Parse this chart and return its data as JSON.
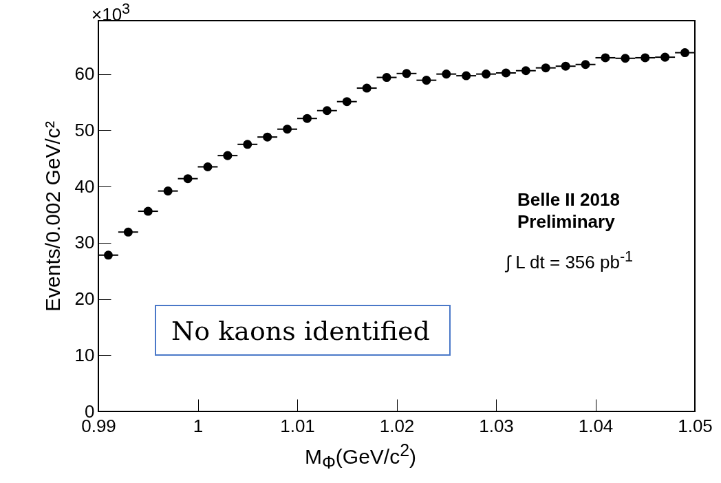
{
  "chart_data": {
    "type": "scatter",
    "xlabel": "M$_{Φ}$(GeV/c$^{2}$)",
    "ylabel": "Events/0.002 GeV/c²",
    "x": [
      0.991,
      0.993,
      0.995,
      0.997,
      0.999,
      1.001,
      1.003,
      1.005,
      1.007,
      1.009,
      1.011,
      1.013,
      1.015,
      1.017,
      1.019,
      1.021,
      1.023,
      1.025,
      1.027,
      1.029,
      1.031,
      1.033,
      1.035,
      1.037,
      1.039,
      1.041,
      1.043,
      1.045,
      1.047,
      1.049
    ],
    "series": [
      {
        "color": "#000000",
        "values": [
          27.8,
          31.9,
          35.6,
          39.2,
          41.4,
          43.5,
          45.5,
          47.5,
          48.8,
          50.2,
          52.1,
          53.5,
          55.1,
          57.5,
          59.4,
          60.1,
          58.9,
          60.0,
          59.7,
          60.0,
          60.2,
          60.6,
          61.1,
          61.4,
          61.7,
          62.9,
          62.8,
          62.9,
          63.0,
          63.8
        ],
        "xerrors": [
          0.001,
          0.001,
          0.001,
          0.001,
          0.001,
          0.001,
          0.001,
          0.001,
          0.001,
          0.001,
          0.001,
          0.001,
          0.001,
          0.001,
          0.001,
          0.001,
          0.001,
          0.001,
          0.001,
          0.001,
          0.001,
          0.001,
          0.001,
          0.001,
          0.001,
          0.001,
          0.001,
          0.001,
          0.001,
          0.001
        ]
      }
    ],
    "xlim": [
      0.99,
      1.05
    ],
    "xticks": [
      0.99,
      1,
      1.01,
      1.02,
      1.03,
      1.04,
      1.05
    ],
    "ylim": [
      0,
      69.5
    ],
    "yticks": [
      0,
      10,
      20,
      30,
      40,
      50,
      60
    ],
    "marker": "circle",
    "grid": false,
    "annotations": [
      "×10$^{3}$",
      "Belle II 2018",
      "Preliminary",
      "∫ L dt = 356 pb$^{-1}$",
      "No kaons identified"
    ]
  }
}
